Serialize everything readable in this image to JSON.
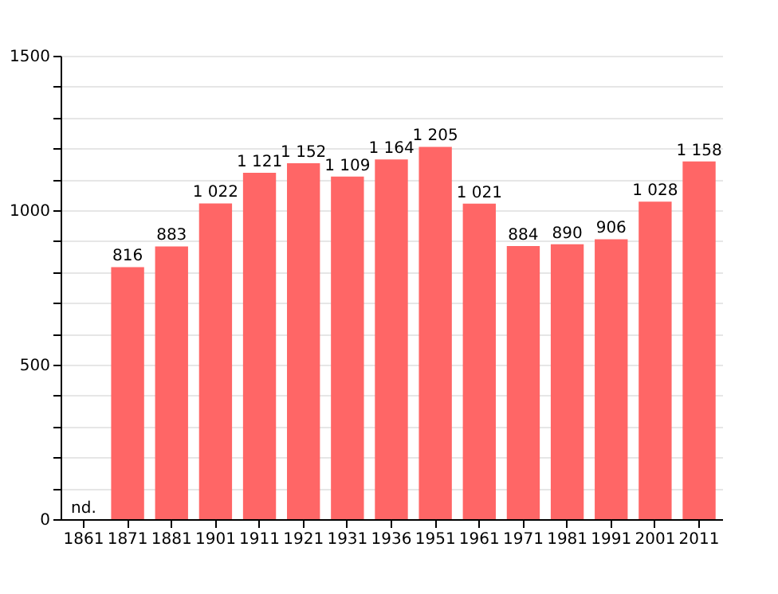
{
  "chart_data": {
    "type": "bar",
    "categories": [
      "1861",
      "1871",
      "1881",
      "1901",
      "1911",
      "1921",
      "1931",
      "1936",
      "1951",
      "1961",
      "1971",
      "1981",
      "1991",
      "2001",
      "2011"
    ],
    "series": [
      {
        "color": "#ff6666",
        "values": [
          null,
          816,
          883,
          1022,
          1121,
          1152,
          1109,
          1164,
          1205,
          1021,
          884,
          890,
          906,
          1028,
          1158
        ],
        "value_labels": [
          "nd.",
          "816",
          "883",
          "1 022",
          "1 121",
          "1 152",
          "1 109",
          "1 164",
          "1 205",
          "1 021",
          "884",
          "890",
          "906",
          "1 028",
          "1 158"
        ]
      }
    ],
    "ylim": [
      0,
      1500
    ],
    "yticks": [
      0,
      {
        "value": 100,
        "label": null
      },
      {
        "value": 200,
        "label": null
      },
      {
        "value": 300,
        "label": null
      },
      {
        "value": 400,
        "label": null
      },
      500,
      {
        "value": 600,
        "label": null
      },
      {
        "value": 700,
        "label": null
      },
      {
        "value": 800,
        "label": null
      },
      {
        "value": 900,
        "label": null
      },
      1000,
      {
        "value": 1100,
        "label": null
      },
      {
        "value": 1200,
        "label": null
      },
      {
        "value": 1300,
        "label": null
      },
      {
        "value": 1400,
        "label": null
      },
      1500
    ],
    "grid": true
  }
}
